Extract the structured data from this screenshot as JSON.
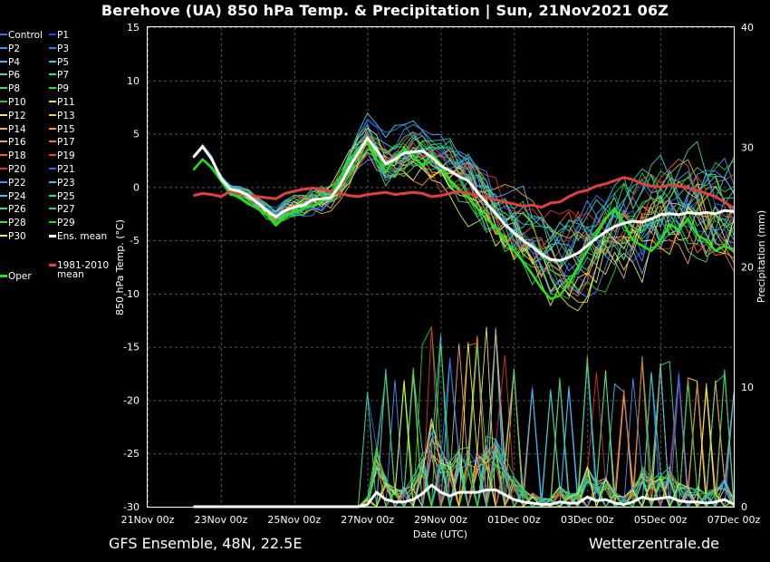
{
  "header": {
    "title": "Berehove  (UA)  850 hPa Temp. & Precipitation | Sun, 21Nov2021 06Z"
  },
  "footer": {
    "left": "GFS Ensemble, 48N, 22.5E",
    "right": "Wetterzentrale.de"
  },
  "legend": {
    "members": [
      {
        "name": "Control",
        "color": "#3a6df0"
      },
      {
        "name": "P1",
        "color": "#2a3cff"
      },
      {
        "name": "P2",
        "color": "#4a90ff"
      },
      {
        "name": "P3",
        "color": "#2f7fe0"
      },
      {
        "name": "P4",
        "color": "#52b0ff"
      },
      {
        "name": "P5",
        "color": "#31c8d8"
      },
      {
        "name": "P6",
        "color": "#3ed6c0"
      },
      {
        "name": "P7",
        "color": "#2ee0a0"
      },
      {
        "name": "P8",
        "color": "#33e070"
      },
      {
        "name": "P9",
        "color": "#2bd84a"
      },
      {
        "name": "P10",
        "color": "#20d020"
      },
      {
        "name": "P11",
        "color": "#e8e840"
      },
      {
        "name": "P12",
        "color": "#f0e070"
      },
      {
        "name": "P13",
        "color": "#f0c840"
      },
      {
        "name": "P14",
        "color": "#f0b030"
      },
      {
        "name": "P15",
        "color": "#f09a20"
      },
      {
        "name": "P16",
        "color": "#f0a070"
      },
      {
        "name": "P17",
        "color": "#e87040"
      },
      {
        "name": "P18",
        "color": "#e86030"
      },
      {
        "name": "P19",
        "color": "#e04a20"
      },
      {
        "name": "P20",
        "color": "#d83030"
      },
      {
        "name": "P21",
        "color": "#3a60e8"
      },
      {
        "name": "P22",
        "color": "#4a8cff"
      },
      {
        "name": "P23",
        "color": "#40b8f0"
      },
      {
        "name": "P24",
        "color": "#38c8e0"
      },
      {
        "name": "P25",
        "color": "#30d8b0"
      },
      {
        "name": "P26",
        "color": "#30e090"
      },
      {
        "name": "P27",
        "color": "#30d860"
      },
      {
        "name": "P28",
        "color": "#40e040"
      },
      {
        "name": "P29",
        "color": "#28d028"
      },
      {
        "name": "P30",
        "color": "#f0f030"
      }
    ],
    "ens_mean": {
      "name": "Ens. mean",
      "color": "#ffffff"
    },
    "clim_mean": {
      "name1": "1981-2010",
      "name2": "mean",
      "color": "#e04040"
    },
    "oper": {
      "name": "Oper",
      "color": "#20e020"
    }
  },
  "chart_data": {
    "type": "line",
    "xlabel": "Date (UTC)",
    "ylabel": "850 hPa Temp. (°C)",
    "ylabel_right": "Precipitation (mm)",
    "x_ticks": [
      "21Nov 00z",
      "23Nov 00z",
      "25Nov 00z",
      "27Nov 00z",
      "29Nov 00z",
      "01Dec 00z",
      "03Dec 00z",
      "05Dec 00z",
      "07Dec 00z"
    ],
    "y_ticks": [
      15,
      10,
      5,
      0,
      -5,
      -10,
      -15,
      -20,
      -25,
      -30
    ],
    "y2_ticks": [
      40,
      30,
      20,
      10,
      0
    ],
    "ylim": [
      -30,
      15
    ],
    "y2lim": [
      0,
      40
    ],
    "x_days": [
      0,
      16
    ],
    "grid": true,
    "ens_mean_temp": [
      [
        1.25,
        2.8
      ],
      [
        1.5,
        3.8
      ],
      [
        1.75,
        2.6
      ],
      [
        2.0,
        0.8
      ],
      [
        2.25,
        -0.2
      ],
      [
        2.5,
        -0.4
      ],
      [
        2.75,
        -0.8
      ],
      [
        3.0,
        -1.5
      ],
      [
        3.25,
        -2.2
      ],
      [
        3.5,
        -2.8
      ],
      [
        3.75,
        -2.2
      ],
      [
        4.0,
        -1.9
      ],
      [
        4.25,
        -1.7
      ],
      [
        4.5,
        -1.2
      ],
      [
        4.75,
        -1.1
      ],
      [
        5.0,
        -1.0
      ],
      [
        5.25,
        0.2
      ],
      [
        5.5,
        1.8
      ],
      [
        5.75,
        3.2
      ],
      [
        6.0,
        4.6
      ],
      [
        6.25,
        3.5
      ],
      [
        6.5,
        2.2
      ],
      [
        6.75,
        2.6
      ],
      [
        7.0,
        3.2
      ],
      [
        7.25,
        3.3
      ],
      [
        7.5,
        3.4
      ],
      [
        7.75,
        2.8
      ],
      [
        8.0,
        2.0
      ],
      [
        8.25,
        1.5
      ],
      [
        8.5,
        1.0
      ],
      [
        8.75,
        0.6
      ],
      [
        9.0,
        -0.5
      ],
      [
        9.25,
        -1.5
      ],
      [
        9.5,
        -2.5
      ],
      [
        9.75,
        -3.5
      ],
      [
        10.0,
        -4.3
      ],
      [
        10.25,
        -5.0
      ],
      [
        10.5,
        -5.6
      ],
      [
        10.75,
        -6.3
      ],
      [
        11.0,
        -6.8
      ],
      [
        11.25,
        -6.9
      ],
      [
        11.5,
        -6.6
      ],
      [
        11.75,
        -6.2
      ],
      [
        12.0,
        -5.5
      ],
      [
        12.25,
        -4.8
      ],
      [
        12.5,
        -4.2
      ],
      [
        12.75,
        -3.7
      ],
      [
        13.0,
        -3.4
      ],
      [
        13.25,
        -3.2
      ],
      [
        13.5,
        -3.3
      ],
      [
        13.75,
        -3.0
      ],
      [
        14.0,
        -2.6
      ],
      [
        14.25,
        -2.5
      ],
      [
        14.5,
        -2.6
      ],
      [
        14.75,
        -2.4
      ],
      [
        15.0,
        -2.5
      ],
      [
        15.25,
        -2.4
      ],
      [
        15.5,
        -2.5
      ],
      [
        15.75,
        -2.2
      ],
      [
        16.0,
        -2.3
      ]
    ],
    "clim_mean_temp": [
      [
        1.25,
        -0.8
      ],
      [
        1.5,
        -0.6
      ],
      [
        1.75,
        -0.7
      ],
      [
        2.0,
        -0.9
      ],
      [
        2.25,
        -0.4
      ],
      [
        2.5,
        -0.6
      ],
      [
        2.75,
        -0.8
      ],
      [
        3.0,
        -0.9
      ],
      [
        3.25,
        -1.0
      ],
      [
        3.5,
        -1.1
      ],
      [
        3.75,
        -0.6
      ],
      [
        4.0,
        -0.4
      ],
      [
        4.25,
        -0.2
      ],
      [
        4.5,
        -0.1
      ],
      [
        4.75,
        -0.2
      ],
      [
        5.0,
        -0.4
      ],
      [
        5.25,
        -0.6
      ],
      [
        5.5,
        -0.8
      ],
      [
        5.75,
        -0.9
      ],
      [
        6.0,
        -0.7
      ],
      [
        6.25,
        -0.6
      ],
      [
        6.5,
        -0.5
      ],
      [
        6.75,
        -0.7
      ],
      [
        7.0,
        -0.6
      ],
      [
        7.25,
        -0.5
      ],
      [
        7.5,
        -0.6
      ],
      [
        7.75,
        -0.9
      ],
      [
        8.0,
        -0.8
      ],
      [
        8.25,
        -0.6
      ],
      [
        8.5,
        -0.4
      ],
      [
        8.75,
        -0.6
      ],
      [
        9.0,
        -0.8
      ],
      [
        9.25,
        -1.0
      ],
      [
        9.5,
        -1.2
      ],
      [
        9.75,
        -1.4
      ],
      [
        10.0,
        -1.6
      ],
      [
        10.25,
        -1.8
      ],
      [
        10.5,
        -1.7
      ],
      [
        10.75,
        -1.9
      ],
      [
        11.0,
        -1.5
      ],
      [
        11.25,
        -1.4
      ],
      [
        11.5,
        -0.9
      ],
      [
        11.75,
        -0.5
      ],
      [
        12.0,
        -0.3
      ],
      [
        12.25,
        0.1
      ],
      [
        12.5,
        0.3
      ],
      [
        12.75,
        0.6
      ],
      [
        13.0,
        0.9
      ],
      [
        13.25,
        0.7
      ],
      [
        13.5,
        0.3
      ],
      [
        13.75,
        0.1
      ],
      [
        14.0,
        0.0
      ],
      [
        14.25,
        0.2
      ],
      [
        14.5,
        0.1
      ],
      [
        14.75,
        -0.1
      ],
      [
        15.0,
        -0.3
      ],
      [
        15.25,
        -0.6
      ],
      [
        15.5,
        -0.9
      ],
      [
        15.75,
        -1.4
      ],
      [
        16.0,
        -2.0
      ]
    ],
    "oper_temp": [
      [
        1.25,
        1.6
      ],
      [
        1.5,
        2.6
      ],
      [
        1.75,
        1.8
      ],
      [
        2.0,
        0.6
      ],
      [
        2.25,
        -0.6
      ],
      [
        2.5,
        -1.0
      ],
      [
        2.75,
        -1.6
      ],
      [
        3.0,
        -2.0
      ],
      [
        3.25,
        -2.6
      ],
      [
        3.5,
        -3.6
      ],
      [
        3.75,
        -2.8
      ],
      [
        4.0,
        -2.4
      ],
      [
        4.25,
        -2.0
      ],
      [
        4.5,
        -1.8
      ],
      [
        4.75,
        -1.3
      ],
      [
        5.0,
        -0.8
      ],
      [
        5.25,
        0.8
      ],
      [
        5.5,
        2.5
      ],
      [
        5.75,
        3.6
      ],
      [
        6.0,
        4.4
      ],
      [
        6.25,
        2.6
      ],
      [
        6.5,
        1.4
      ],
      [
        6.75,
        2.8
      ],
      [
        7.0,
        3.6
      ],
      [
        7.25,
        3.0
      ],
      [
        7.5,
        2.0
      ],
      [
        7.75,
        3.1
      ],
      [
        8.0,
        2.2
      ],
      [
        8.25,
        0.6
      ],
      [
        8.5,
        -0.3
      ],
      [
        8.75,
        -1.0
      ],
      [
        9.0,
        -2.0
      ],
      [
        9.25,
        -3.0
      ],
      [
        9.5,
        -3.8
      ],
      [
        9.75,
        -5.0
      ],
      [
        10.0,
        -6.0
      ],
      [
        10.25,
        -7.0
      ],
      [
        10.5,
        -8.2
      ],
      [
        10.75,
        -9.5
      ],
      [
        11.0,
        -10.5
      ],
      [
        11.25,
        -10.2
      ],
      [
        11.5,
        -9.0
      ],
      [
        11.75,
        -7.5
      ],
      [
        12.0,
        -6.0
      ],
      [
        12.25,
        -4.5
      ],
      [
        12.5,
        -3.0
      ],
      [
        12.75,
        -2.0
      ],
      [
        13.0,
        -3.5
      ],
      [
        13.25,
        -5.0
      ],
      [
        13.5,
        -5.5
      ],
      [
        13.75,
        -6.0
      ],
      [
        14.0,
        -5.0
      ],
      [
        14.25,
        -3.5
      ],
      [
        14.5,
        -4.0
      ],
      [
        14.75,
        -3.0
      ],
      [
        15.0,
        -4.5
      ],
      [
        15.25,
        -5.0
      ],
      [
        15.5,
        -6.0
      ],
      [
        15.75,
        -5.5
      ],
      [
        16.0,
        -6.0
      ]
    ],
    "ens_mean_precip": [
      [
        1.25,
        0
      ],
      [
        5.75,
        0
      ],
      [
        6.0,
        0.2
      ],
      [
        6.25,
        1.2
      ],
      [
        6.5,
        0.6
      ],
      [
        6.75,
        0.4
      ],
      [
        7.0,
        0.4
      ],
      [
        7.25,
        0.6
      ],
      [
        7.5,
        1.1
      ],
      [
        7.75,
        1.8
      ],
      [
        8.0,
        1.2
      ],
      [
        8.25,
        0.9
      ],
      [
        8.5,
        1.2
      ],
      [
        8.75,
        1.2
      ],
      [
        9.0,
        1.2
      ],
      [
        9.25,
        1.4
      ],
      [
        9.5,
        1.4
      ],
      [
        9.75,
        1.0
      ],
      [
        10.0,
        0.6
      ],
      [
        10.25,
        0.4
      ],
      [
        10.5,
        0.3
      ],
      [
        10.75,
        0.2
      ],
      [
        11.0,
        0.2
      ],
      [
        11.25,
        0.4
      ],
      [
        11.5,
        0.3
      ],
      [
        11.75,
        0.3
      ],
      [
        12.0,
        0.8
      ],
      [
        12.25,
        0.5
      ],
      [
        12.5,
        0.6
      ],
      [
        12.75,
        0.3
      ],
      [
        13.0,
        0.2
      ],
      [
        13.25,
        0.4
      ],
      [
        13.5,
        0.8
      ],
      [
        13.75,
        0.6
      ],
      [
        14.0,
        0.7
      ],
      [
        14.25,
        0.8
      ],
      [
        14.5,
        0.5
      ],
      [
        14.75,
        0.4
      ],
      [
        15.0,
        0.4
      ],
      [
        15.25,
        0.3
      ],
      [
        15.5,
        0.4
      ],
      [
        15.75,
        0.6
      ],
      [
        16.0,
        0.2
      ]
    ]
  }
}
